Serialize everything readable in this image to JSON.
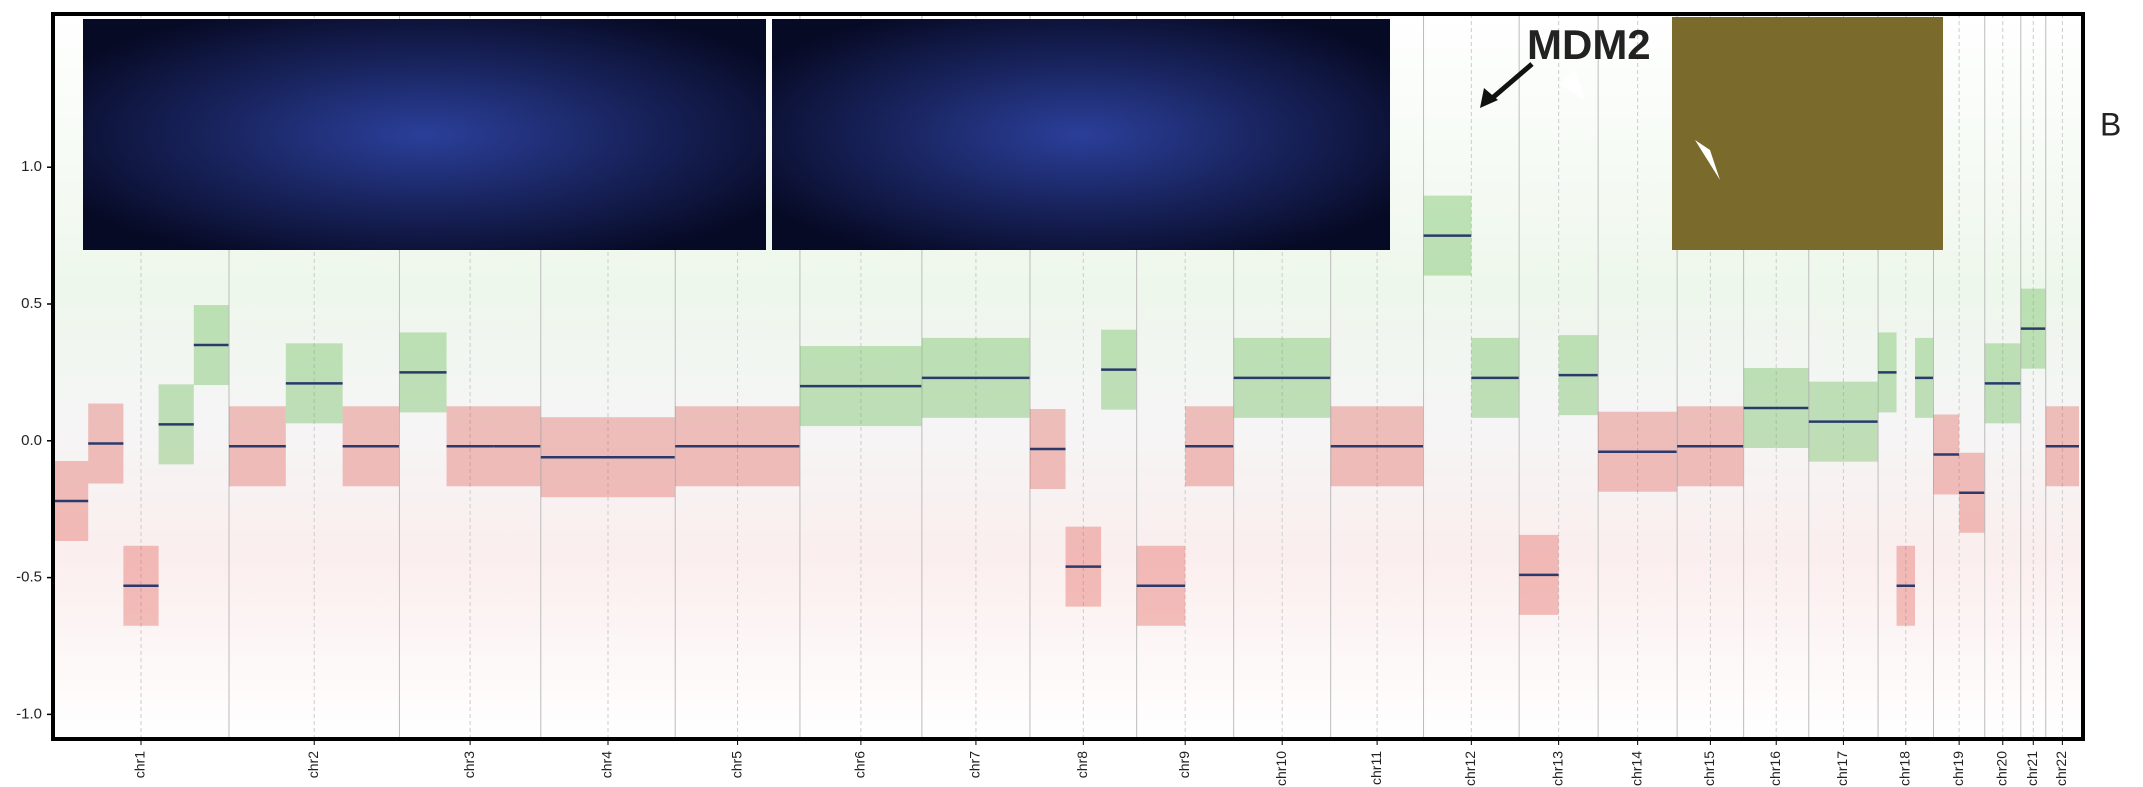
{
  "chart_data": {
    "type": "segments",
    "categories": [
      "chr1",
      "chr2",
      "chr3",
      "chr4",
      "chr5",
      "chr6",
      "chr7",
      "chr8",
      "chr9",
      "chr10",
      "chr11",
      "chr12",
      "chr13",
      "chr14",
      "chr15",
      "chr16",
      "chr17",
      "chr18",
      "chr19",
      "chr20",
      "chr21",
      "chr22"
    ],
    "values": [
      [
        -0.22,
        -0.01,
        -0.53,
        0.06,
        0.35
      ],
      [
        -0.02,
        0.21,
        -0.02
      ],
      [
        0.25,
        -0.02,
        -0.02
      ],
      [
        -0.06
      ],
      [
        -0.02
      ],
      [
        0.2
      ],
      [
        0.23
      ],
      [
        -0.03,
        -0.46,
        0.26
      ],
      [
        -0.53,
        -0.02
      ],
      [
        0.23
      ],
      [
        -0.02
      ],
      [
        0.75,
        0.23
      ],
      [
        -0.49,
        0.24
      ],
      [
        -0.04
      ],
      [
        -0.02
      ],
      [
        0.12
      ],
      [
        0.07
      ],
      [
        0.25,
        -0.53,
        0.23
      ],
      [
        -0.05,
        -0.19
      ],
      [
        0.21
      ],
      [
        0.41
      ],
      [
        -0.02
      ]
    ],
    "color": "#2b3a6b",
    "ylim": [
      -1.09,
      1.56
    ],
    "yticks": [
      {
        "value": -1.0,
        "label": "-1.0"
      },
      {
        "value": -0.5,
        "label": "-0.5"
      },
      {
        "value": 0.0,
        "label": "0.0"
      },
      {
        "value": 0.5,
        "label": "0.5"
      },
      {
        "value": 1.0,
        "label": "1.0"
      }
    ],
    "annotation": "MDM2",
    "panel_label": "B"
  }
}
